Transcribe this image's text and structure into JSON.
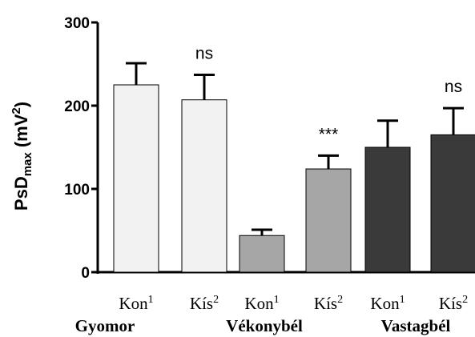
{
  "chart_data": {
    "type": "bar",
    "y_axis": {
      "label_main": "PsD",
      "label_sub": "max",
      "label_unit": "(mV",
      "label_sup": "2",
      "label_close": ")",
      "ylim": [
        0,
        300
      ],
      "ticks": [
        "0",
        "100",
        "200",
        "300"
      ]
    },
    "bars": [
      {
        "base": "Kon",
        "sup": "1",
        "value": 225,
        "error": 26,
        "annotation": "",
        "color": "#f2f2f2"
      },
      {
        "base": "Kís",
        "sup": "2",
        "value": 207,
        "error": 30,
        "annotation": "ns",
        "color": "#f2f2f2"
      },
      {
        "base": "Kon",
        "sup": "1",
        "value": 44,
        "error": 7,
        "annotation": "",
        "color": "#a6a6a6"
      },
      {
        "base": "Kís",
        "sup": "2",
        "value": 124,
        "error": 16,
        "annotation": "***",
        "color": "#a6a6a6"
      },
      {
        "base": "Kon",
        "sup": "1",
        "value": 150,
        "error": 32,
        "annotation": "",
        "color": "#3a3a3a"
      },
      {
        "base": "Kís",
        "sup": "2",
        "value": 165,
        "error": 32,
        "annotation": "ns",
        "color": "#3a3a3a"
      }
    ],
    "groups": [
      {
        "label": "Gyomor",
        "bars": [
          0,
          1
        ]
      },
      {
        "label": "Vékonybél",
        "bars": [
          2,
          3
        ]
      },
      {
        "label": "Vastagbél",
        "bars": [
          4,
          5
        ]
      }
    ],
    "grid": false,
    "legend": "none"
  }
}
